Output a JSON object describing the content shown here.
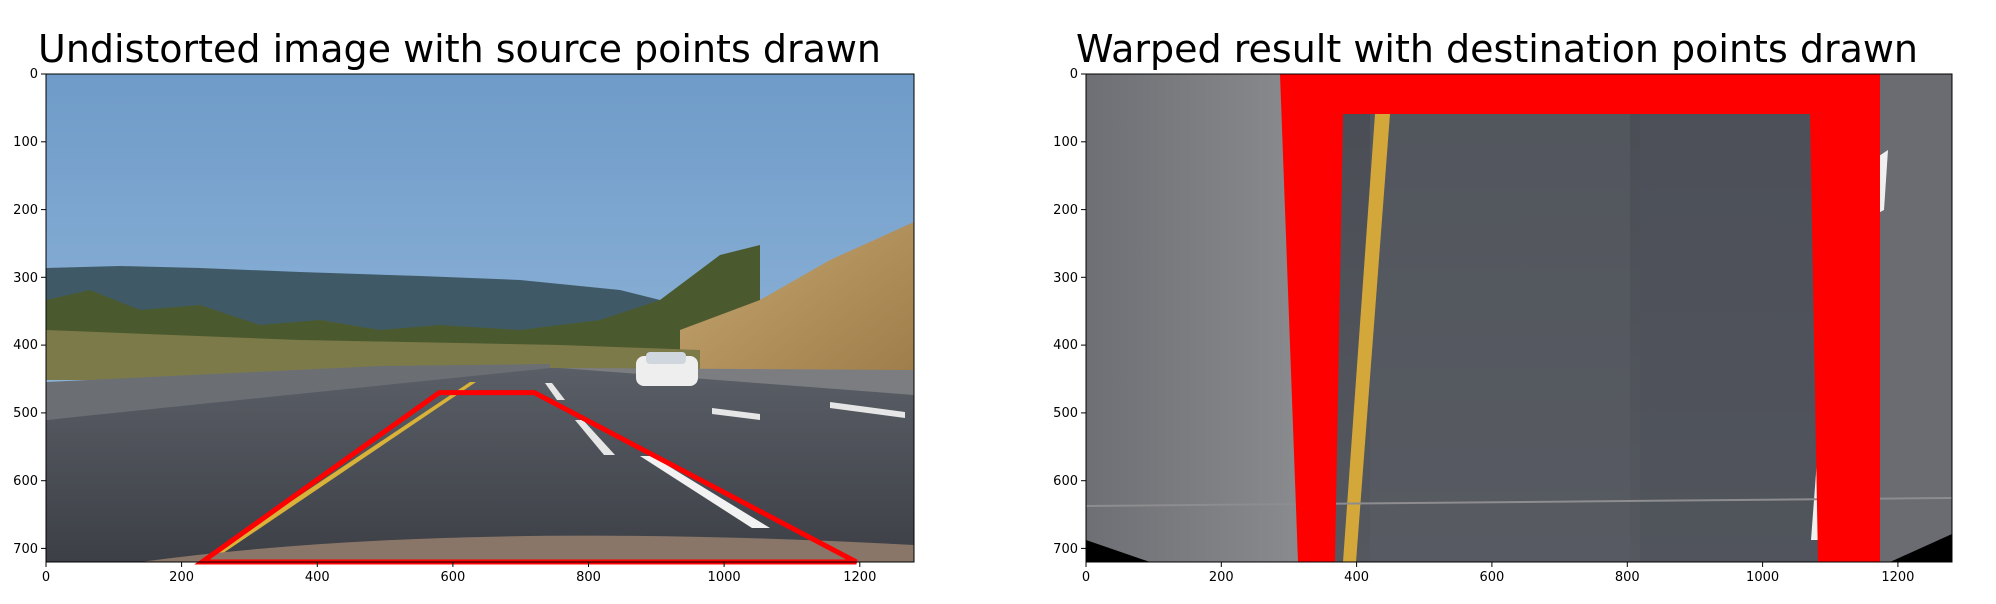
{
  "figure": {
    "left": {
      "title": "Undistorted image with source points drawn",
      "x_ticks": [
        "0",
        "200",
        "400",
        "600",
        "800",
        "1000",
        "1200"
      ],
      "y_ticks": [
        "0",
        "100",
        "200",
        "300",
        "400",
        "500",
        "600",
        "700"
      ],
      "x_range": [
        0,
        1280
      ],
      "y_range": [
        0,
        720
      ],
      "polygon_color": "#ff0000",
      "source_points": [
        [
          580,
          470
        ],
        [
          720,
          470
        ],
        [
          1195,
          720
        ],
        [
          230,
          720
        ]
      ]
    },
    "right": {
      "title": "Warped result with destination points drawn",
      "x_ticks": [
        "0",
        "200",
        "400",
        "600",
        "800",
        "1000",
        "1200"
      ],
      "y_ticks": [
        "0",
        "100",
        "200",
        "300",
        "400",
        "500",
        "600",
        "700"
      ],
      "x_range": [
        0,
        1280
      ],
      "y_range": [
        0,
        720
      ],
      "polygon_color": "#ff0000",
      "destination_points": [
        [
          320,
          0
        ],
        [
          1050,
          0
        ],
        [
          1050,
          720
        ],
        [
          320,
          720
        ]
      ]
    }
  }
}
